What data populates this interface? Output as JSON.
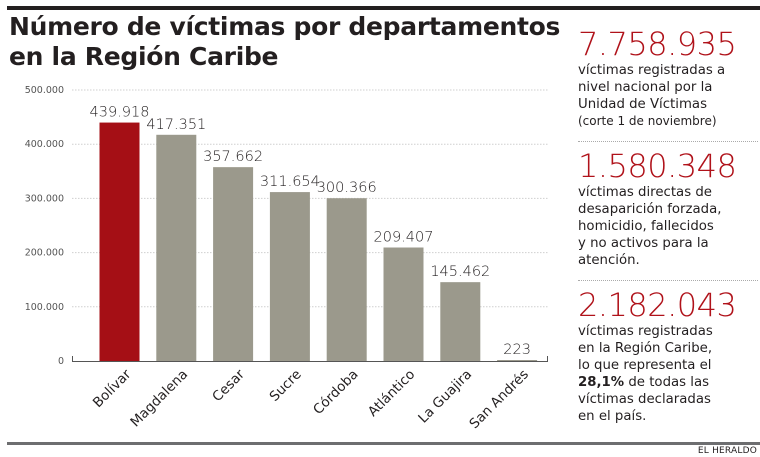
{
  "title": "Número de víctimas por departamentos en la Región Caribe",
  "colors": {
    "highlight": "#a50f15",
    "bar": "#9b998c",
    "text": "#231f20",
    "stat_number": "#b0121a",
    "grid": "#cfcfcf",
    "axis": "#555555"
  },
  "chart_data": {
    "type": "bar",
    "title": "Número de víctimas por departamentos en la Región Caribe",
    "xlabel": "",
    "ylabel": "",
    "categories": [
      "Bolívar",
      "Magdalena",
      "Cesar",
      "Sucre",
      "Córdoba",
      "Atlántico",
      "La Guajira",
      "San Andrés"
    ],
    "values": [
      439918,
      417351,
      357662,
      311654,
      300366,
      209407,
      145462,
      223
    ],
    "value_labels": [
      "439.918",
      "417.351",
      "357.662",
      "311.654",
      "300.366",
      "209.407",
      "145.462",
      "223"
    ],
    "highlight_index": 0,
    "ylim": [
      0,
      500000
    ],
    "yticks": [
      0,
      100000,
      200000,
      300000,
      400000,
      500000
    ],
    "ytick_labels": [
      "0",
      "100.000",
      "200.000",
      "300.000",
      "400.000",
      "500.000"
    ],
    "grid": true,
    "grid_style": "dotted-horizontal",
    "legend": "none",
    "xtick_rotation": "-45deg"
  },
  "sidebar": {
    "stats": [
      {
        "number": "7.758.935",
        "lines": [
          "víctimas registradas a",
          "nivel nacional por la",
          "Unidad de Víctimas"
        ],
        "note": "(corte 1 de noviembre)"
      },
      {
        "number": "1.580.348",
        "lines": [
          "víctimas directas de",
          "desaparición forzada,",
          "homicidio, fallecidos",
          "y no activos para la",
          "atención."
        ]
      },
      {
        "number": "2.182.043",
        "lines": [
          "víctimas registradas",
          "en la Región Caribe,",
          "lo que representa el"
        ],
        "highlight": "28,1%",
        "highlight_suffix": " de todas las",
        "tail_lines": [
          "víctimas declaradas",
          "en el país."
        ]
      }
    ]
  },
  "footer": {
    "credit": "EL HERALDO"
  }
}
